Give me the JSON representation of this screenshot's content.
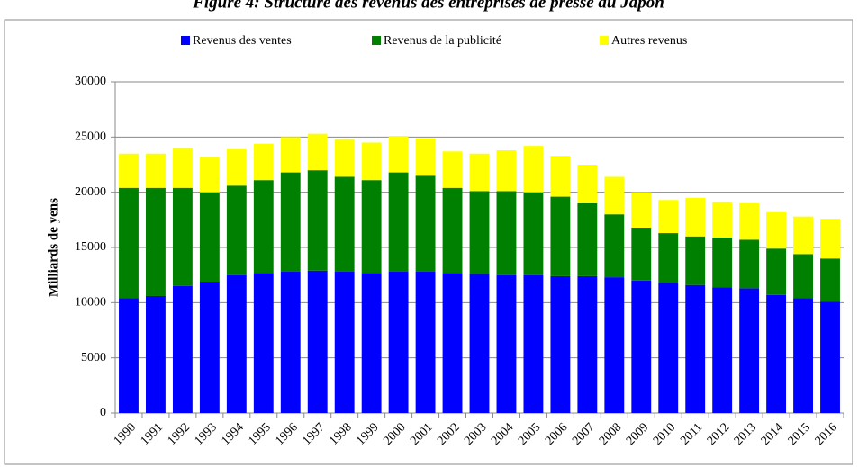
{
  "chart_data": {
    "type": "stacked_bar",
    "title": "Figure 4: Structure des revenus des entreprises de presse au Japon",
    "y_label": "Milliards de yens",
    "categories": [
      "1990",
      "1991",
      "1992",
      "1993",
      "1994",
      "1995",
      "1996",
      "1997",
      "1998",
      "1999",
      "2000",
      "2001",
      "2002",
      "2003",
      "2004",
      "2005",
      "2006",
      "2007",
      "2008",
      "2009",
      "2010",
      "2011",
      "2012",
      "2013",
      "2014",
      "2015",
      "2016"
    ],
    "series": [
      {
        "name": "Revenus des ventes",
        "color": "#0000ff",
        "values": [
          10400,
          10600,
          11500,
          11900,
          12500,
          12700,
          12800,
          12900,
          12800,
          12700,
          12800,
          12800,
          12700,
          12600,
          12500,
          12500,
          12400,
          12400,
          12300,
          12000,
          11800,
          11600,
          11400,
          11300,
          10700,
          10400,
          10100
        ]
      },
      {
        "name": "Revenus de la publicité",
        "color": "#008000",
        "values": [
          10000,
          9800,
          8900,
          8100,
          8100,
          8400,
          9000,
          9100,
          8600,
          8400,
          9000,
          8700,
          7700,
          7500,
          7600,
          7500,
          7200,
          6600,
          5700,
          4800,
          4500,
          4400,
          4500,
          4400,
          4200,
          4000,
          3900
        ]
      },
      {
        "name": "Autres revenus",
        "color": "#ffff00",
        "values": [
          3100,
          3100,
          3600,
          3200,
          3300,
          3300,
          3200,
          3300,
          3400,
          3400,
          3300,
          3400,
          3300,
          3400,
          3700,
          4200,
          3700,
          3500,
          3400,
          3200,
          3000,
          3500,
          3200,
          3300,
          3300,
          3400,
          3600
        ]
      }
    ],
    "ylim": [
      0,
      30000
    ],
    "yticks": [
      0,
      5000,
      10000,
      15000,
      20000,
      25000,
      30000
    ],
    "grid": true,
    "legend": "top"
  }
}
